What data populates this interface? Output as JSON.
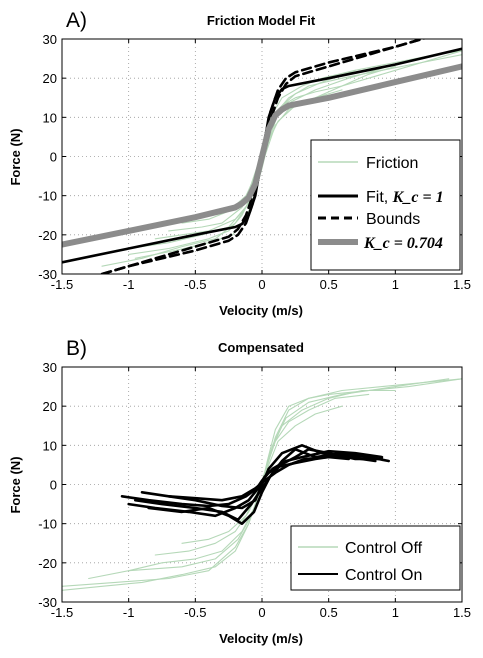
{
  "chart_data": [
    {
      "panel_label": "A)",
      "type": "line",
      "title": "Friction Model Fit",
      "xlabel": "Velocity (m/s)",
      "ylabel": "Force (N)",
      "xlim": [
        -1.5,
        1.5
      ],
      "ylim": [
        -30,
        30
      ],
      "xticks": [
        -1.5,
        -1,
        -0.5,
        0,
        0.5,
        1,
        1.5
      ],
      "xtick_labels": [
        "-1.5",
        "-1",
        "-0.5",
        "0",
        "0.5",
        "1",
        "1.5"
      ],
      "yticks": [
        -30,
        -20,
        -10,
        0,
        10,
        20,
        30
      ],
      "ytick_labels": [
        "-30",
        "-20",
        "-10",
        "0",
        "10",
        "20",
        "30"
      ],
      "grid": true,
      "legend_position": "bottom-right",
      "series": [
        {
          "name": "Friction",
          "style": "thin-light-green",
          "color": "#b5d8b8",
          "traces": [
            {
              "x": [
                -1.0,
                -0.7,
                -0.4,
                -0.25,
                -0.15,
                -0.08,
                -0.03,
                0.0,
                0.03,
                0.08,
                0.15,
                0.25,
                0.4,
                0.6,
                0.8,
                1.0,
                1.2,
                1.5
              ],
              "y": [
                -25,
                -23.5,
                -21,
                -19,
                -15,
                -10,
                -5,
                -1,
                4,
                9,
                13,
                15,
                16.5,
                18,
                20,
                22,
                24,
                26
              ]
            },
            {
              "x": [
                -1.2,
                -0.9,
                -0.6,
                -0.35,
                -0.2,
                -0.1,
                -0.04,
                0.0,
                0.04,
                0.1,
                0.2,
                0.35,
                0.6,
                0.9,
                1.2,
                1.5
              ],
              "y": [
                -28,
                -26,
                -23,
                -21,
                -17,
                -12,
                -6,
                -2,
                5,
                11,
                15,
                18,
                20,
                22,
                24,
                27
              ]
            },
            {
              "x": [
                -0.8,
                -0.6,
                -0.4,
                -0.2,
                -0.1,
                -0.05,
                0.0,
                0.05,
                0.1,
                0.2,
                0.4,
                0.6,
                0.8,
                1.0
              ],
              "y": [
                -21,
                -20,
                -19,
                -16,
                -12,
                -7,
                -2,
                3,
                8,
                12,
                15,
                18,
                21,
                23
              ]
            },
            {
              "x": [
                -1.1,
                -0.7,
                -0.45,
                -0.25,
                -0.12,
                -0.06,
                -0.02,
                0.02,
                0.06,
                0.12,
                0.25,
                0.45,
                0.7,
                1.0,
                1.3,
                1.5
              ],
              "y": [
                -24,
                -22,
                -20,
                -18,
                -13,
                -8,
                -3,
                1,
                7,
                12,
                16,
                19,
                22,
                24,
                26,
                27
              ]
            },
            {
              "x": [
                -0.95,
                -0.65,
                -0.4,
                -0.22,
                -0.11,
                -0.05,
                0.0,
                0.05,
                0.11,
                0.22,
                0.4,
                0.65,
                0.95,
                1.2
              ],
              "y": [
                -26,
                -24,
                -22,
                -20,
                -15,
                -9,
                -3,
                4,
                10,
                14,
                17,
                20,
                23,
                25
              ]
            },
            {
              "x": [
                -0.6,
                -0.4,
                -0.25,
                -0.12,
                -0.05,
                0.0,
                0.05,
                0.12,
                0.25,
                0.4,
                0.6
              ],
              "y": [
                -17,
                -16,
                -14,
                -10,
                -5,
                -1,
                4,
                9,
                13,
                15,
                17
              ]
            },
            {
              "x": [
                -0.7,
                -0.45,
                -0.3,
                -0.15,
                -0.08,
                -0.02,
                0.03,
                0.08,
                0.15,
                0.3,
                0.45,
                0.7
              ],
              "y": [
                -19,
                -18,
                -17,
                -13,
                -7,
                -1,
                6,
                11,
                15,
                18,
                20,
                22
              ]
            }
          ]
        },
        {
          "name": "Fit, ",
          "name_math": "K_c = 1",
          "style": "solid-black",
          "color": "#000000",
          "x": [
            -1.5,
            -1.0,
            -0.5,
            -0.2,
            -0.15,
            -0.1,
            -0.05,
            0.0,
            0.05,
            0.1,
            0.15,
            0.2,
            0.5,
            1.0,
            1.5
          ],
          "y": [
            -27,
            -23.5,
            -20,
            -18,
            -17.2,
            -15,
            -10,
            0,
            10,
            15,
            17.2,
            18,
            20,
            23.5,
            27.5
          ]
        },
        {
          "name": "Bounds",
          "style": "dashed-black",
          "color": "#000000",
          "traces": [
            {
              "x": [
                -1.5,
                -1.0,
                -0.5,
                -0.25,
                -0.18,
                -0.12,
                -0.06,
                0.0,
                0.06,
                0.12,
                0.18,
                0.25,
                0.5,
                1.0,
                1.2
              ],
              "y": [
                -33,
                -28,
                -24,
                -21.5,
                -20,
                -17,
                -11,
                -1,
                9,
                15,
                18.5,
                20.5,
                23,
                28,
                30
              ]
            },
            {
              "x": [
                -1.2,
                -1.0,
                -0.5,
                -0.25,
                -0.18,
                -0.12,
                -0.06,
                0.0,
                0.06,
                0.12,
                0.18,
                0.25,
                0.5,
                1.0,
                1.5
              ],
              "y": [
                -30,
                -28,
                -23,
                -20.5,
                -18.5,
                -15,
                -9,
                1,
                11,
                17,
                20,
                21.5,
                24,
                28,
                33
              ]
            }
          ]
        },
        {
          "name": "",
          "name_math": "K_c = 0.704",
          "style": "thick-gray",
          "color": "#8c8c8c",
          "x": [
            -1.5,
            -1.0,
            -0.5,
            -0.2,
            -0.15,
            -0.1,
            -0.05,
            0.0,
            0.05,
            0.1,
            0.15,
            0.2,
            0.5,
            1.0,
            1.5
          ],
          "y": [
            -22.5,
            -19,
            -15.5,
            -13,
            -12,
            -10.5,
            -7,
            0,
            7,
            10.5,
            12,
            13,
            15,
            19,
            23
          ]
        }
      ]
    },
    {
      "panel_label": "B)",
      "type": "line",
      "title": "Compensated",
      "xlabel": "Velocity (m/s)",
      "ylabel": "Force (N)",
      "xlim": [
        -1.5,
        1.5
      ],
      "ylim": [
        -30,
        30
      ],
      "xticks": [
        -1.5,
        -1,
        -0.5,
        0,
        0.5,
        1,
        1.5
      ],
      "xtick_labels": [
        "-1.5",
        "-1",
        "-0.5",
        "0",
        "0.5",
        "1",
        "1.5"
      ],
      "yticks": [
        -30,
        -20,
        -10,
        0,
        10,
        20,
        30
      ],
      "ytick_labels": [
        "-30",
        "-20",
        "-10",
        "0",
        "10",
        "20",
        "30"
      ],
      "grid": true,
      "legend_position": "bottom-right",
      "series": [
        {
          "name": "Control Off",
          "style": "thin-light-green",
          "color": "#b5d8b8",
          "traces": [
            {
              "x": [
                -1.5,
                -1.1,
                -0.7,
                -0.4,
                -0.2,
                -0.1,
                -0.04,
                0.0,
                0.04,
                0.1,
                0.2,
                0.35,
                0.5,
                0.8,
                1.1,
                1.5
              ],
              "y": [
                -26,
                -25,
                -24,
                -22,
                -16,
                -10,
                -4,
                0,
                6,
                14,
                20,
                22,
                23,
                24,
                25,
                27
              ]
            },
            {
              "x": [
                -1.3,
                -1.0,
                -0.6,
                -0.35,
                -0.18,
                -0.08,
                -0.02,
                0.02,
                0.08,
                0.18,
                0.35,
                0.6,
                1.0,
                1.4
              ],
              "y": [
                -24,
                -22,
                -21,
                -19,
                -14,
                -8,
                -2,
                3,
                10,
                17,
                21,
                23,
                25,
                27
              ]
            },
            {
              "x": [
                -1.0,
                -0.75,
                -0.5,
                -0.3,
                -0.15,
                -0.06,
                0.0,
                0.06,
                0.15,
                0.3,
                0.5,
                0.75,
                1.0
              ],
              "y": [
                -22,
                -20,
                -19,
                -17,
                -12,
                -6,
                0,
                8,
                15,
                19,
                22,
                24,
                24
              ]
            },
            {
              "x": [
                -0.8,
                -0.55,
                -0.35,
                -0.2,
                -0.1,
                -0.03,
                0.03,
                0.1,
                0.2,
                0.35,
                0.55,
                0.8
              ],
              "y": [
                -18,
                -17,
                -15,
                -12,
                -7,
                -2,
                4,
                11,
                16,
                19,
                22,
                23
              ]
            },
            {
              "x": [
                -1.5,
                -1.2,
                -0.9,
                -0.6,
                -0.35,
                -0.2,
                -0.1,
                0.0,
                0.1,
                0.2,
                0.35,
                0.6,
                0.9,
                1.2,
                1.5
              ],
              "y": [
                -27,
                -26,
                -25,
                -23,
                -21,
                -17,
                -10,
                0,
                12,
                19,
                22,
                24,
                25,
                26,
                27
              ]
            },
            {
              "x": [
                -0.6,
                -0.4,
                -0.25,
                -0.12,
                -0.05,
                0.0,
                0.05,
                0.12,
                0.25,
                0.4,
                0.6
              ],
              "y": [
                -15,
                -14,
                -12,
                -8,
                -3,
                0,
                5,
                11,
                15,
                18,
                20
              ]
            }
          ]
        },
        {
          "name": "Control On",
          "style": "solid-black",
          "color": "#000000",
          "traces": [
            {
              "x": [
                -1.05,
                -0.85,
                -0.6,
                -0.4,
                -0.25,
                -0.12,
                -0.04,
                0.0,
                0.05,
                0.12,
                0.25,
                0.4,
                0.6,
                0.8,
                0.95
              ],
              "y": [
                -3,
                -4,
                -5,
                -5.5,
                -5,
                -3,
                -1,
                1,
                3,
                4.5,
                5.5,
                6.5,
                7.5,
                7,
                6
              ]
            },
            {
              "x": [
                -1.0,
                -0.8,
                -0.55,
                -0.35,
                -0.2,
                -0.1,
                -0.03,
                0.02,
                0.08,
                0.18,
                0.3,
                0.5,
                0.7,
                0.9
              ],
              "y": [
                -5,
                -6,
                -7,
                -8,
                -6,
                -4,
                -1,
                2,
                4,
                6,
                7,
                8.5,
                8,
                7
              ]
            },
            {
              "x": [
                -0.9,
                -0.7,
                -0.5,
                -0.3,
                -0.15,
                -0.05,
                0.0,
                0.05,
                0.15,
                0.3,
                0.45,
                0.65,
                0.85
              ],
              "y": [
                -2,
                -3,
                -4,
                -5.5,
                -6,
                -4,
                0,
                4,
                8,
                10,
                8,
                7,
                6
              ]
            },
            {
              "x": [
                -0.95,
                -0.75,
                -0.5,
                -0.3,
                -0.18,
                -0.08,
                0.0,
                0.08,
                0.15,
                0.25,
                0.4,
                0.6,
                0.8
              ],
              "y": [
                -4,
                -5,
                -6,
                -7,
                -9,
                -5,
                -1,
                3,
                6,
                9,
                7,
                8,
                7
              ]
            },
            {
              "x": [
                -0.85,
                -0.6,
                -0.4,
                -0.25,
                -0.15,
                -0.06,
                0.0,
                0.06,
                0.14,
                0.25,
                0.35,
                0.5,
                0.7,
                0.9
              ],
              "y": [
                -6,
                -7,
                -6,
                -8,
                -10,
                -7,
                -2,
                2,
                5,
                7,
                9,
                8,
                6.5,
                6.5
              ]
            },
            {
              "x": [
                -0.7,
                -0.5,
                -0.3,
                -0.15,
                -0.05,
                0.02,
                0.1,
                0.2,
                0.32,
                0.5,
                0.65
              ],
              "y": [
                -3,
                -3.5,
                -4,
                -3,
                -1,
                1,
                3,
                5,
                6.5,
                7,
                6.5
              ]
            }
          ]
        }
      ]
    }
  ]
}
